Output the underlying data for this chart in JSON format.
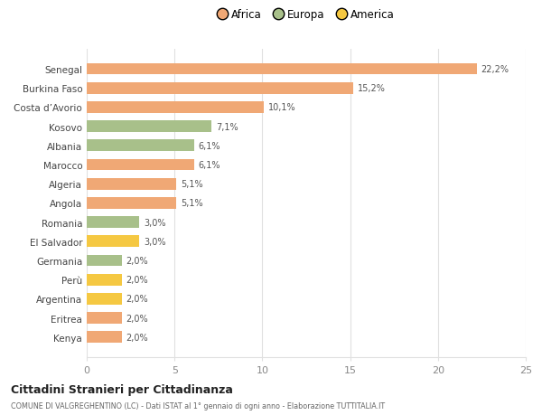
{
  "categories": [
    "Kenya",
    "Eritrea",
    "Argentina",
    "Perù",
    "Germania",
    "El Salvador",
    "Romania",
    "Angola",
    "Algeria",
    "Marocco",
    "Albania",
    "Kosovo",
    "Costa d’Avorio",
    "Burkina Faso",
    "Senegal"
  ],
  "values": [
    2.0,
    2.0,
    2.0,
    2.0,
    2.0,
    3.0,
    3.0,
    5.1,
    5.1,
    6.1,
    6.1,
    7.1,
    10.1,
    15.2,
    22.2
  ],
  "labels": [
    "2,0%",
    "2,0%",
    "2,0%",
    "2,0%",
    "2,0%",
    "3,0%",
    "3,0%",
    "5,1%",
    "5,1%",
    "6,1%",
    "6,1%",
    "7,1%",
    "10,1%",
    "15,2%",
    "22,2%"
  ],
  "colors": [
    "#F0A875",
    "#F0A875",
    "#F5C842",
    "#F5C842",
    "#A8C08A",
    "#F5C842",
    "#A8C08A",
    "#F0A875",
    "#F0A875",
    "#F0A875",
    "#A8C08A",
    "#A8C08A",
    "#F0A875",
    "#F0A875",
    "#F0A875"
  ],
  "continent_colors": {
    "Africa": "#F0A875",
    "Europa": "#A8C08A",
    "America": "#F5C842"
  },
  "title": "Cittadini Stranieri per Cittadinanza",
  "subtitle": "COMUNE DI VALGREGHENTINO (LC) - Dati ISTAT al 1° gennaio di ogni anno - Elaborazione TUTTITALIA.IT",
  "xlim": [
    0,
    25
  ],
  "xticks": [
    0,
    5,
    10,
    15,
    20,
    25
  ],
  "background_color": "#ffffff",
  "bar_height": 0.6,
  "grid_color": "#e0e0e0"
}
